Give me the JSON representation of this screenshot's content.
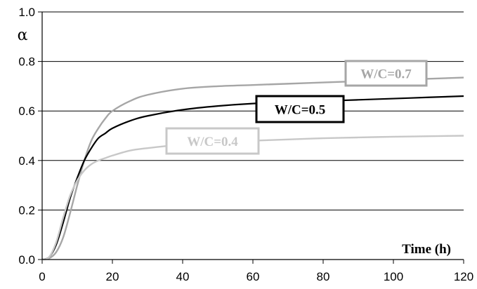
{
  "chart_data": {
    "type": "line",
    "xlabel": "Time (h)",
    "ylabel": "α",
    "xlim": [
      0,
      120
    ],
    "ylim": [
      0,
      1.0
    ],
    "x_ticks": [
      "0",
      "20",
      "40",
      "60",
      "80",
      "100",
      "120"
    ],
    "y_ticks": [
      "0.0",
      "0.2",
      "0.4",
      "0.6",
      "0.8",
      "1.0"
    ],
    "grid": "horizontal",
    "series": [
      {
        "name": "W/C=0.7",
        "color": "#a6a6a6",
        "x": [
          0,
          2,
          4,
          6,
          8,
          10,
          12,
          14,
          16,
          18,
          20,
          25,
          30,
          40,
          50,
          60,
          70,
          80,
          90,
          100,
          110,
          120
        ],
        "y": [
          0,
          0.005,
          0.03,
          0.09,
          0.19,
          0.3,
          0.4,
          0.48,
          0.53,
          0.57,
          0.6,
          0.64,
          0.665,
          0.69,
          0.7,
          0.705,
          0.71,
          0.715,
          0.72,
          0.725,
          0.73,
          0.735
        ]
      },
      {
        "name": "W/C=0.5",
        "color": "#000000",
        "x": [
          0,
          2,
          4,
          6,
          8,
          10,
          12,
          14,
          16,
          18,
          20,
          25,
          30,
          40,
          50,
          60,
          70,
          80,
          90,
          100,
          110,
          120
        ],
        "y": [
          0,
          0.01,
          0.06,
          0.15,
          0.25,
          0.33,
          0.4,
          0.45,
          0.49,
          0.51,
          0.53,
          0.56,
          0.58,
          0.605,
          0.62,
          0.63,
          0.635,
          0.64,
          0.645,
          0.65,
          0.655,
          0.66
        ]
      },
      {
        "name": "W/C=0.4",
        "color": "#c8c8c8",
        "x": [
          0,
          2,
          4,
          6,
          8,
          10,
          12,
          14,
          16,
          18,
          20,
          25,
          30,
          40,
          50,
          60,
          70,
          80,
          90,
          100,
          110,
          120
        ],
        "y": [
          0,
          0.01,
          0.07,
          0.17,
          0.26,
          0.32,
          0.36,
          0.385,
          0.4,
          0.41,
          0.42,
          0.44,
          0.45,
          0.465,
          0.475,
          0.48,
          0.485,
          0.49,
          0.493,
          0.496,
          0.498,
          0.5
        ]
      }
    ]
  }
}
